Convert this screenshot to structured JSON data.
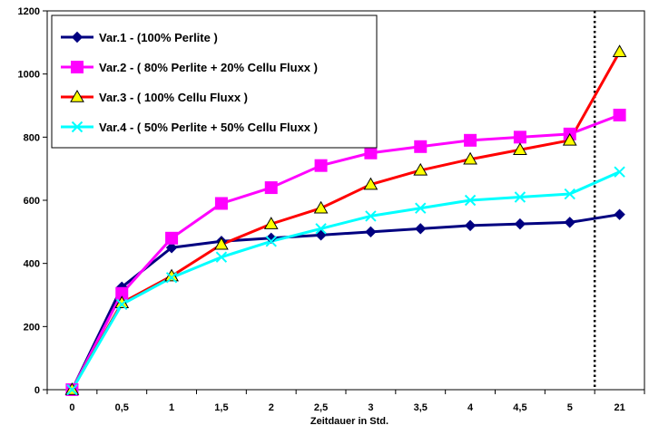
{
  "chart_data": {
    "type": "line",
    "title": "",
    "xlabel": "Zeitdauer in Std.",
    "ylabel": "",
    "ylim": [
      0,
      1200
    ],
    "yticks": [
      "0",
      "200",
      "400",
      "600",
      "800",
      "1000",
      "1200"
    ],
    "categories": [
      "0",
      "0,5",
      "1",
      "1,5",
      "2",
      "2,5",
      "3",
      "3,5",
      "4",
      "4,5",
      "5",
      "21"
    ],
    "grid": false,
    "legend_position": "top-left",
    "reference_line": {
      "style": "dotted",
      "between_categories": [
        "5",
        "21"
      ]
    },
    "series": [
      {
        "name": "Var.1 -  (100% Perlite )",
        "color": "#000080",
        "marker": "diamond",
        "values": [
          0,
          325,
          450,
          470,
          480,
          490,
          500,
          510,
          520,
          525,
          530,
          555
        ]
      },
      {
        "name": "Var.2 -  ( 80% Perlite + 20% Cellu Fluxx )",
        "color": "#ff00ff",
        "marker": "square",
        "values": [
          0,
          305,
          480,
          590,
          640,
          710,
          750,
          770,
          790,
          800,
          810,
          870
        ]
      },
      {
        "name": "Var.3 -  ( 100% Cellu Fluxx )",
        "color": "#ff0000",
        "marker": "triangle",
        "marker_fill": "#ffff00",
        "values": [
          0,
          275,
          360,
          460,
          525,
          575,
          650,
          695,
          730,
          760,
          790,
          1070
        ]
      },
      {
        "name": "Var.4 -  ( 50% Perlite + 50% Cellu Fluxx )",
        "color": "#00ffff",
        "marker": "x",
        "values": [
          0,
          270,
          355,
          420,
          470,
          510,
          550,
          575,
          600,
          610,
          620,
          690
        ]
      }
    ]
  }
}
